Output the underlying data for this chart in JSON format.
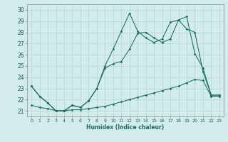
{
  "title": "",
  "xlabel": "Humidex (Indice chaleur)",
  "background_color": "#d1ecea",
  "grid_color": "#b8d8d5",
  "line_color": "#1a6b62",
  "xlim": [
    -0.5,
    23.5
  ],
  "ylim": [
    20.5,
    30.5
  ],
  "xticks": [
    0,
    1,
    2,
    3,
    4,
    5,
    6,
    7,
    8,
    9,
    10,
    11,
    12,
    13,
    14,
    15,
    16,
    17,
    18,
    19,
    20,
    21,
    22,
    23
  ],
  "yticks": [
    21,
    22,
    23,
    24,
    25,
    26,
    27,
    28,
    29,
    30
  ],
  "line1_y": [
    23.2,
    22.3,
    21.7,
    21.0,
    21.0,
    21.5,
    21.3,
    21.9,
    23.0,
    24.8,
    25.2,
    25.4,
    26.5,
    27.9,
    28.0,
    27.5,
    27.1,
    27.4,
    29.1,
    29.4,
    26.1,
    24.8,
    22.4,
    22.4
  ],
  "line2_y": [
    23.2,
    22.3,
    21.7,
    21.0,
    21.0,
    21.5,
    21.3,
    21.9,
    23.0,
    25.0,
    26.5,
    28.1,
    29.7,
    28.1,
    27.5,
    27.1,
    27.4,
    28.9,
    29.1,
    28.3,
    28.0,
    24.5,
    22.4,
    22.4
  ],
  "line3_y": [
    21.5,
    21.3,
    21.2,
    21.0,
    21.0,
    21.1,
    21.1,
    21.2,
    21.3,
    21.4,
    21.6,
    21.8,
    22.0,
    22.2,
    22.4,
    22.6,
    22.8,
    23.0,
    23.2,
    23.5,
    23.8,
    23.7,
    22.3,
    22.3
  ]
}
